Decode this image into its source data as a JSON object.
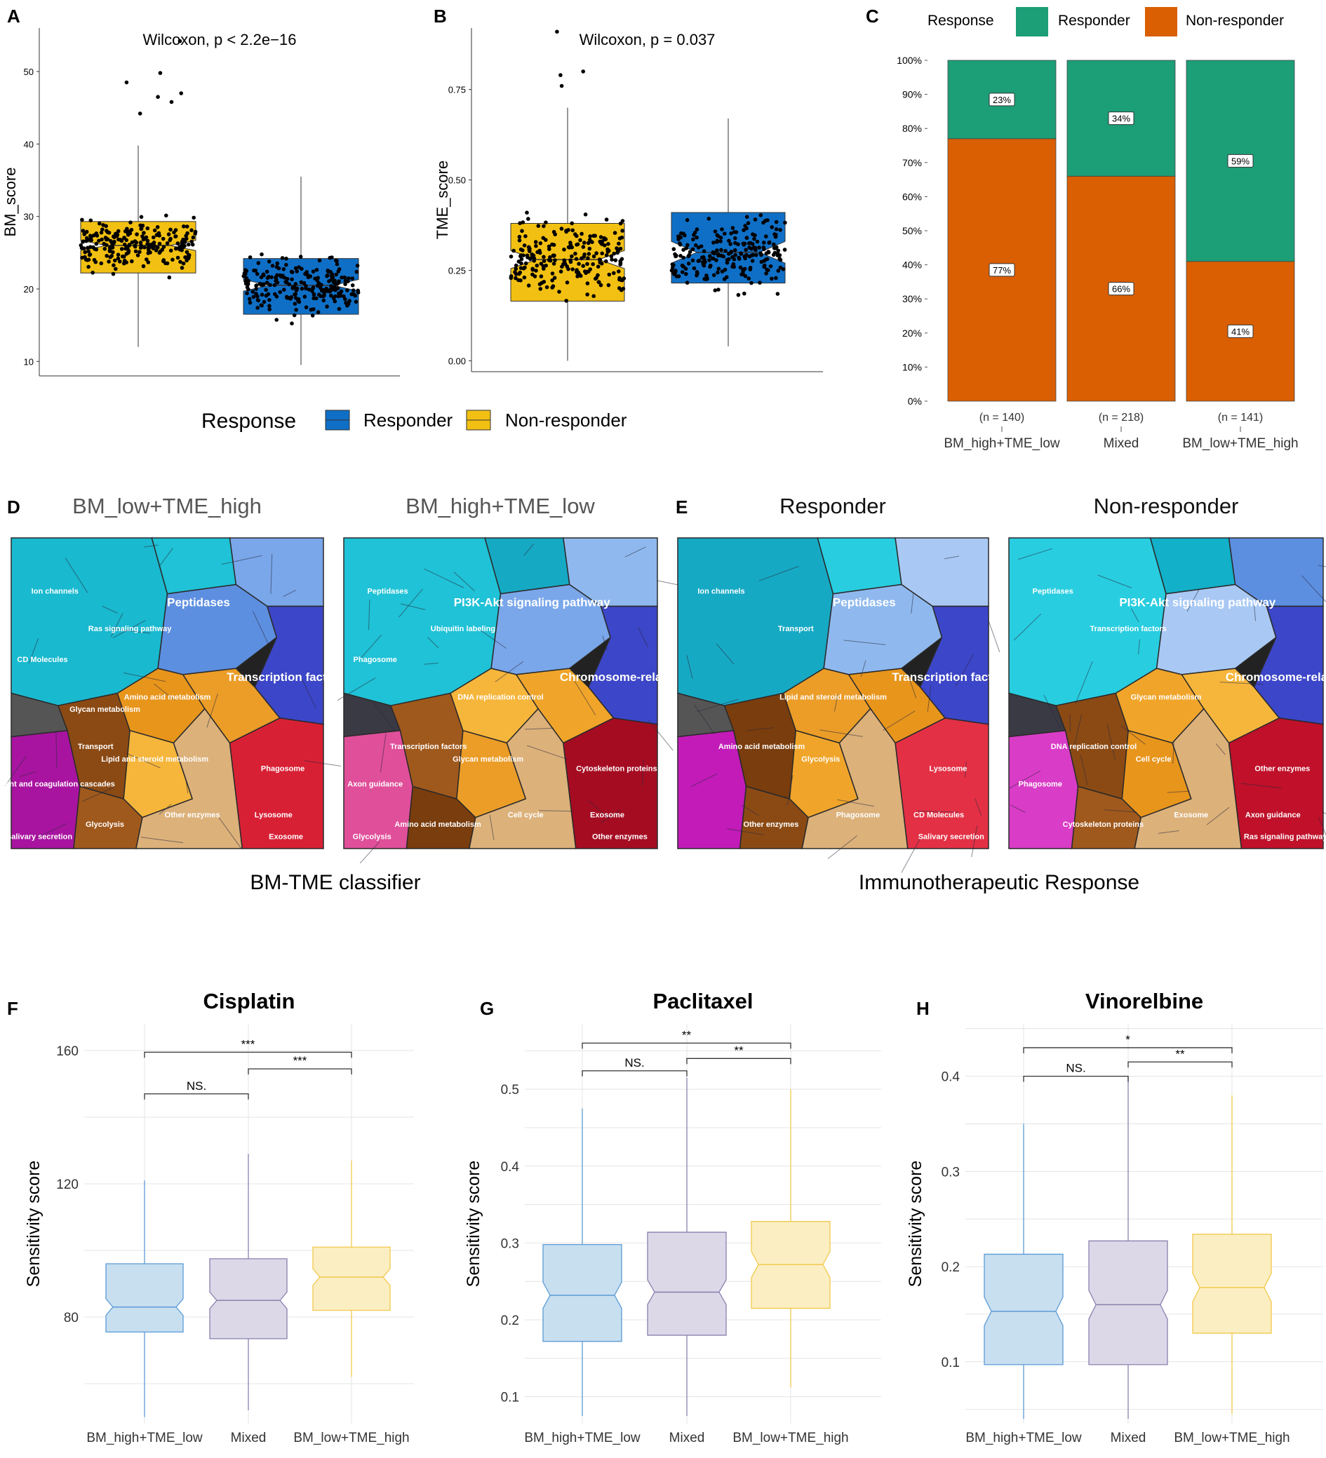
{
  "colors": {
    "responder_blue": "#0f6fc6",
    "nonresponder_yellow": "#f2c012",
    "responder_green": "#1c9e77",
    "nonresponder_orange": "#d95f02",
    "pale_blue": "#c8dff0",
    "pale_blue_line": "#5b9bd5",
    "pale_purple": "#ddd8e8",
    "pale_purple_line": "#8a7fad",
    "pale_yellow": "#fbeec2",
    "pale_yellow_line": "#f2c94c"
  },
  "panel_letters": [
    "A",
    "B",
    "C",
    "D",
    "E",
    "F",
    "G",
    "H"
  ],
  "legend_ab": {
    "title": "Response",
    "items": [
      "Responder",
      "Non-responder"
    ]
  },
  "chart_data": [
    {
      "id": "A",
      "type": "box-jitter",
      "title": "Wilcoxon, p < 2.2e−16",
      "ylabel": "BM_score",
      "ylim": [
        8,
        56
      ],
      "yticks": [
        10,
        20,
        30,
        40,
        50
      ],
      "groups": [
        {
          "name": "Non-responder",
          "color": "#f2c012",
          "min": 12,
          "q1": 22.2,
          "median": 26,
          "q3": 29.3,
          "max": 39.8,
          "notch": [
            25.3,
            26.7
          ]
        },
        {
          "name": "Responder",
          "color": "#0f6fc6",
          "min": 9.5,
          "q1": 16.5,
          "median": 20.5,
          "q3": 24.2,
          "max": 35.5,
          "notch": [
            19.7,
            21.3
          ]
        }
      ],
      "outliers": [
        54.2,
        49.8,
        48.5,
        47,
        46.5,
        45.8,
        44.2
      ]
    },
    {
      "id": "B",
      "type": "box-jitter",
      "title": "Wilcoxon, p = 0.037",
      "ylabel": "TME_score",
      "ylim": [
        -0.03,
        0.92
      ],
      "yticks": [
        0.0,
        0.25,
        0.5,
        0.75
      ],
      "ytick_labels": [
        "0.00",
        "0.25",
        "0.50",
        "0.75"
      ],
      "groups": [
        {
          "name": "Non-responder",
          "color": "#f2c012",
          "min": 0.0,
          "q1": 0.165,
          "median": 0.28,
          "q3": 0.38,
          "max": 0.7,
          "notch": [
            0.255,
            0.305
          ]
        },
        {
          "name": "Responder",
          "color": "#0f6fc6",
          "min": 0.04,
          "q1": 0.215,
          "median": 0.3,
          "q3": 0.41,
          "max": 0.67,
          "notch": [
            0.27,
            0.33
          ]
        }
      ],
      "outliers": [
        0.91,
        0.8,
        0.79,
        0.76
      ]
    },
    {
      "id": "C",
      "type": "stacked-bar-percent",
      "legend": {
        "title": "Response",
        "items": [
          "Responder",
          "Non-responder"
        ]
      },
      "yticks": [
        "0%",
        "10%",
        "20%",
        "30%",
        "40%",
        "50%",
        "60%",
        "70%",
        "80%",
        "90%",
        "100%"
      ],
      "categories": [
        "BM_high+TME_low",
        "Mixed",
        "BM_low+TME_high"
      ],
      "counts": [
        "(n = 140)",
        "(n = 218)",
        "(n = 141)"
      ],
      "series": [
        {
          "name": "Non-responder",
          "values": [
            77,
            66,
            41
          ],
          "labels": [
            "77%",
            "66%",
            "41%"
          ]
        },
        {
          "name": "Responder",
          "values": [
            23,
            34,
            59
          ],
          "labels": [
            "23%",
            "34%",
            "59%"
          ]
        }
      ]
    },
    {
      "id": "F",
      "type": "box",
      "title": "Cisplatin",
      "ylabel": "Sensitivity score",
      "ylim": [
        48,
        168
      ],
      "yticks": [
        80,
        120,
        160
      ],
      "categories": [
        "BM_high+TME_low",
        "Mixed",
        "BM_low+TME_high"
      ],
      "boxes": [
        {
          "min": 50,
          "q1": 75.5,
          "median": 83,
          "q3": 96,
          "max": 121,
          "notch": [
            80.5,
            85.5
          ]
        },
        {
          "min": 52,
          "q1": 73.5,
          "median": 85,
          "q3": 97.5,
          "max": 129,
          "notch": [
            82.5,
            87.5
          ]
        },
        {
          "min": 62,
          "q1": 82,
          "median": 92,
          "q3": 101,
          "max": 127,
          "notch": [
            89.5,
            94.5
          ]
        }
      ],
      "brackets": [
        {
          "from": 0,
          "to": 1,
          "y": 147,
          "label": "NS."
        },
        {
          "from": 1,
          "to": 2,
          "y": 154.5,
          "label": "***"
        },
        {
          "from": 0,
          "to": 2,
          "y": 159.5,
          "label": "***"
        }
      ]
    },
    {
      "id": "G",
      "type": "box",
      "title": "Paclitaxel",
      "ylabel": "Sensitivity score",
      "ylim": [
        0.065,
        0.585
      ],
      "yticks": [
        0.1,
        0.2,
        0.3,
        0.4,
        0.5
      ],
      "categories": [
        "BM_high+TME_low",
        "Mixed",
        "BM_low+TME_high"
      ],
      "boxes": [
        {
          "min": 0.075,
          "q1": 0.172,
          "median": 0.232,
          "q3": 0.298,
          "max": 0.475,
          "notch": [
            0.215,
            0.249
          ]
        },
        {
          "min": 0.075,
          "q1": 0.18,
          "median": 0.236,
          "q3": 0.314,
          "max": 0.515,
          "notch": [
            0.22,
            0.252
          ]
        },
        {
          "min": 0.112,
          "q1": 0.215,
          "median": 0.272,
          "q3": 0.328,
          "max": 0.5,
          "notch": [
            0.255,
            0.289
          ]
        }
      ],
      "brackets": [
        {
          "from": 0,
          "to": 1,
          "y": 0.524,
          "label": "NS."
        },
        {
          "from": 1,
          "to": 2,
          "y": 0.54,
          "label": "**"
        },
        {
          "from": 0,
          "to": 2,
          "y": 0.56,
          "label": "**"
        }
      ]
    },
    {
      "id": "H",
      "type": "box",
      "title": "Vinorelbine",
      "ylabel": "Sensitivity score",
      "ylim": [
        0.035,
        0.455
      ],
      "yticks": [
        0.1,
        0.2,
        0.3,
        0.4
      ],
      "categories": [
        "BM_high+TME_low",
        "Mixed",
        "BM_low+TME_high"
      ],
      "boxes": [
        {
          "min": 0.04,
          "q1": 0.097,
          "median": 0.153,
          "q3": 0.213,
          "max": 0.35,
          "notch": [
            0.138,
            0.168
          ]
        },
        {
          "min": 0.04,
          "q1": 0.097,
          "median": 0.16,
          "q3": 0.227,
          "max": 0.4,
          "notch": [
            0.145,
            0.175
          ]
        },
        {
          "min": 0.045,
          "q1": 0.13,
          "median": 0.178,
          "q3": 0.234,
          "max": 0.38,
          "notch": [
            0.163,
            0.193
          ]
        }
      ],
      "brackets": [
        {
          "from": 0,
          "to": 1,
          "y": 0.4,
          "label": "NS."
        },
        {
          "from": 1,
          "to": 2,
          "y": 0.415,
          "label": "**"
        },
        {
          "from": 0,
          "to": 2,
          "y": 0.43,
          "label": "*"
        }
      ]
    }
  ],
  "proteomaps": {
    "group_labels": {
      "D": "BM-TME classifier",
      "E": "Immunotherapeutic Response"
    },
    "maps": [
      {
        "title": "BM_low+TME_high",
        "labels": [
          "Peptidases",
          "Transcription factors",
          "Ion channels",
          "Ras signaling pathway",
          "Transport",
          "Amino acid metabolism",
          "Lipid and steroid metabolism",
          "Glycolysis",
          "Other enzymes",
          "Phagosome",
          "Lysosome",
          "Exosome",
          "Complement and coagulation cascades",
          "Salivary secretion",
          "CD Molecules",
          "Glycan metabolism"
        ]
      },
      {
        "title": "BM_high+TME_low",
        "labels": [
          "PI3K-Akt signaling pathway",
          "Chromosome-related",
          "Peptidases",
          "Ubiquitin labeling",
          "Transcription factors",
          "DNA replication control",
          "Glycan metabolism",
          "Amino acid metabolism",
          "Cell cycle",
          "Cytoskeleton proteins",
          "Exosome",
          "Other enzymes",
          "Axon guidance",
          "Glycolysis",
          "Phagosome"
        ]
      },
      {
        "title": "Responder",
        "labels": [
          "Peptidases",
          "Transcription factors",
          "Ion channels",
          "Transport",
          "Amino acid metabolism",
          "Lipid and steroid metabolism",
          "Glycolysis",
          "Other enzymes",
          "Phagosome",
          "Lysosome",
          "CD Molecules",
          "Salivary secretion"
        ]
      },
      {
        "title": "Non-responder",
        "labels": [
          "PI3K-Akt signaling pathway",
          "Chromosome-related",
          "Peptidases",
          "Transcription factors",
          "DNA replication control",
          "Glycan metabolism",
          "Cell cycle",
          "Cytoskeleton proteins",
          "Exosome",
          "Other enzymes",
          "Axon guidance",
          "Ras signaling pathway",
          "Phagosome"
        ]
      }
    ]
  }
}
